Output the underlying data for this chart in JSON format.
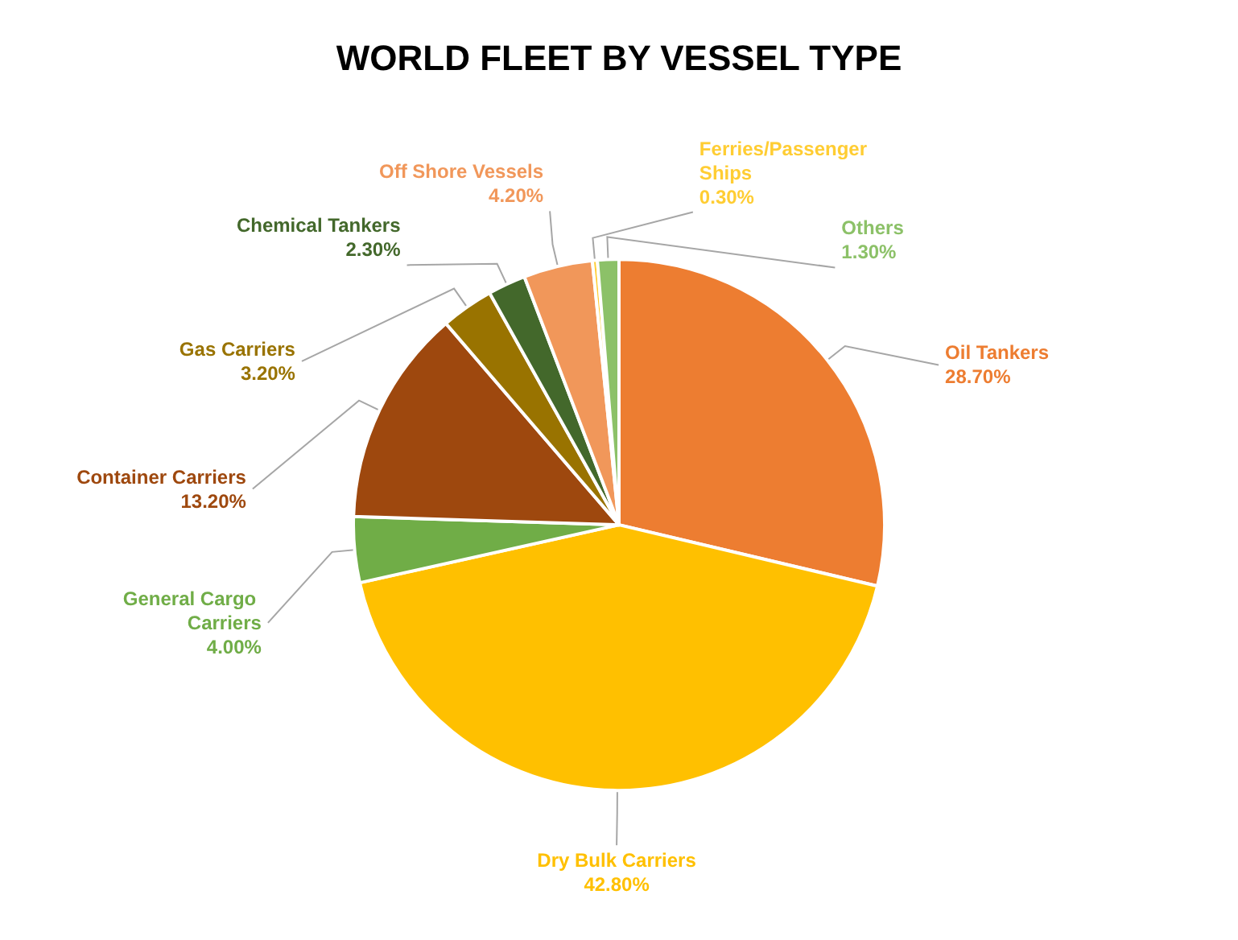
{
  "chart_data": {
    "type": "pie",
    "title": "WORLD FLEET BY VESSEL TYPE",
    "categories": [
      "Oil Tankers",
      "Dry Bulk Carriers",
      "General Cargo Carriers",
      "Container Carriers",
      "Gas Carriers",
      "Chemical Tankers",
      "Off Shore Vessels",
      "Ferries/Passenger Ships",
      "Others"
    ],
    "values": [
      28.7,
      42.8,
      4.0,
      13.2,
      3.2,
      2.3,
      4.2,
      0.3,
      1.3
    ],
    "colors": [
      "#ed7d31",
      "#ffc000",
      "#70ad47",
      "#9e480e",
      "#997300",
      "#43682b",
      "#f1975a",
      "#ffcd33",
      "#8cc168"
    ],
    "value_labels": [
      "28.70%",
      "42.80%",
      "4.00%",
      "13.20%",
      "3.20%",
      "2.30%",
      "4.20%",
      "0.30%",
      "1.30%"
    ]
  }
}
